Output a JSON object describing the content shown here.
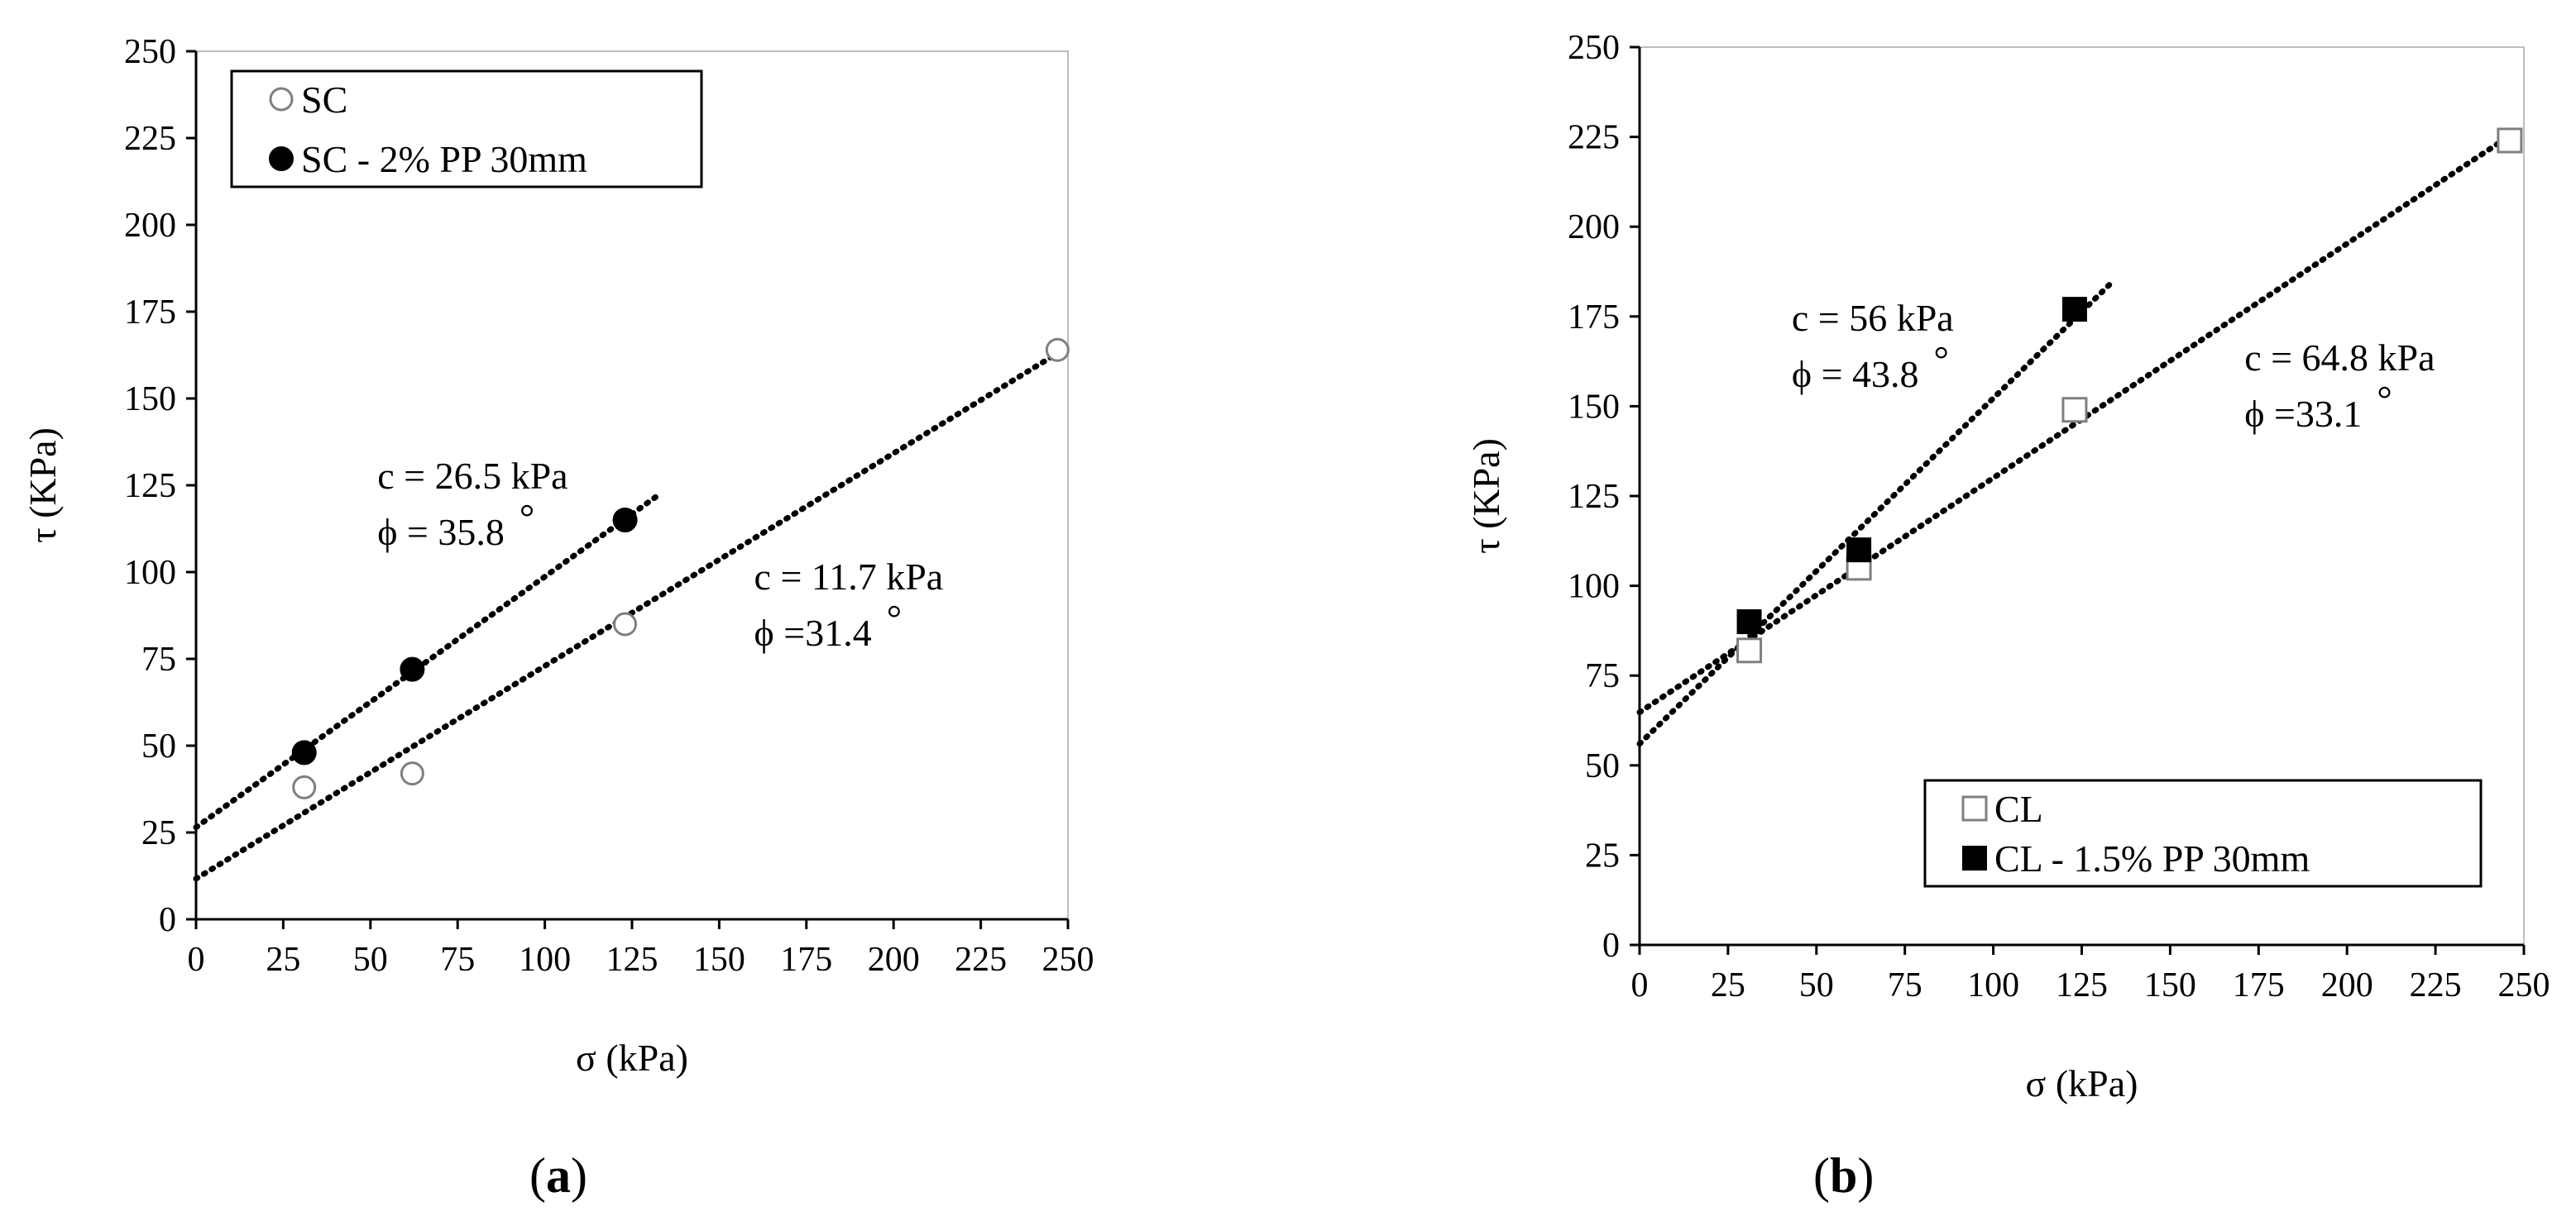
{
  "chart_data": [
    {
      "type": "scatter",
      "panel_label": "(a)",
      "panel_letter": "a",
      "xlabel": "σ (kPa)",
      "ylabel": "τ (KPa)",
      "xlim": [
        0,
        250
      ],
      "ylim": [
        0,
        250
      ],
      "xticks": [
        "0",
        "25",
        "50",
        "75",
        "100",
        "125",
        "150",
        "175",
        "200",
        "225",
        "250"
      ],
      "yticks": [
        "0",
        "25",
        "50",
        "75",
        "100",
        "125",
        "150",
        "175",
        "200",
        "225",
        "250"
      ],
      "legend_position": "top-left",
      "series": [
        {
          "name": "SC",
          "marker": "circle-open",
          "points": [
            [
              31,
              38
            ],
            [
              62,
              42
            ],
            [
              123,
              85
            ],
            [
              247,
              164
            ]
          ],
          "trend": {
            "x": [
              0,
              247
            ],
            "y": [
              11.7,
              163.0
            ]
          }
        },
        {
          "name": "SC - 2% PP 30mm",
          "marker": "circle-filled",
          "points": [
            [
              31,
              48
            ],
            [
              62,
              72
            ],
            [
              123,
              115
            ]
          ],
          "trend": {
            "x": [
              0,
              133
            ],
            "y": [
              26.5,
              122.5
            ]
          }
        }
      ],
      "annotations": [
        {
          "line1": "c = 26.5 kPa",
          "line2": "ϕ = 35.8",
          "deg": "°",
          "x": 52,
          "y": 124
        },
        {
          "line1": "c = 11.7 kPa",
          "line2": "ϕ =31.4",
          "deg": "°",
          "x": 160,
          "y": 95
        }
      ]
    },
    {
      "type": "scatter",
      "panel_label": "(b)",
      "panel_letter": "b",
      "xlabel": "σ (kPa)",
      "ylabel": "τ (KPa)",
      "xlim": [
        0,
        250
      ],
      "ylim": [
        0,
        250
      ],
      "xticks": [
        "0",
        "25",
        "50",
        "75",
        "100",
        "125",
        "150",
        "175",
        "200",
        "225",
        "250"
      ],
      "yticks": [
        "0",
        "25",
        "50",
        "75",
        "100",
        "125",
        "150",
        "175",
        "200",
        "225",
        "250"
      ],
      "legend_position": "bottom-right",
      "series": [
        {
          "name": "CL",
          "marker": "square-open",
          "points": [
            [
              31,
              82
            ],
            [
              62,
              105
            ],
            [
              123,
              149
            ],
            [
              246,
              224
            ]
          ],
          "trend": {
            "x": [
              0,
              246
            ],
            "y": [
              64.8,
              225.3
            ]
          }
        },
        {
          "name": "CL - 1.5% PP 30mm",
          "marker": "square-filled",
          "points": [
            [
              31,
              90
            ],
            [
              62,
              110
            ],
            [
              123,
              177
            ]
          ],
          "trend": {
            "x": [
              0,
              133
            ],
            "y": [
              56,
              184
            ]
          }
        }
      ],
      "annotations": [
        {
          "line1": "c = 56 kPa",
          "line2": "ϕ = 43.8",
          "deg": "°",
          "x": 43,
          "y": 171
        },
        {
          "line1": "c = 64.8 kPa",
          "line2": "ϕ =33.1",
          "deg": "°",
          "x": 171,
          "y": 160
        }
      ]
    }
  ]
}
